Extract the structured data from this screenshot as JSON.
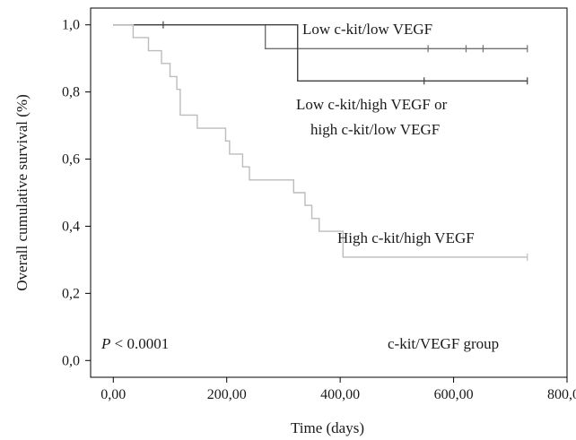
{
  "chart_data": {
    "type": "line",
    "subtype": "kaplan-meier-step",
    "xlabel": "Time (days)",
    "ylabel": "Overall cumulative survival (%)",
    "xlim": [
      -40,
      800
    ],
    "ylim": [
      -0.05,
      1.05
    ],
    "x_ticks": [
      0,
      200,
      400,
      600,
      800
    ],
    "x_tick_labels": [
      "0,00",
      "200,00",
      "400,00",
      "600,00",
      "800,00"
    ],
    "y_ticks": [
      0,
      0.2,
      0.4,
      0.6,
      0.8,
      1.0
    ],
    "y_tick_labels": [
      "0,0",
      "0,2",
      "0,4",
      "0,6",
      "0,8",
      "1,0"
    ],
    "grid": false,
    "series": [
      {
        "name": "Low c-kit/low VEGF",
        "color": "#707070",
        "steps": [
          [
            0,
            1.0
          ],
          [
            268,
            0.929
          ],
          [
            730,
            0.929
          ]
        ],
        "censored": [
          [
            555,
            0.929
          ],
          [
            622,
            0.929
          ],
          [
            652,
            0.929
          ],
          [
            730,
            0.929
          ]
        ]
      },
      {
        "name": "Low c-kit/high VEGF or high c-kit/low VEGF",
        "color": "#404040",
        "steps": [
          [
            0,
            1.0
          ],
          [
            325,
            0.833
          ],
          [
            730,
            0.833
          ]
        ],
        "censored": [
          [
            88,
            1.0
          ],
          [
            548,
            0.833
          ],
          [
            730,
            0.833
          ]
        ]
      },
      {
        "name": "High c-kit/high VEGF",
        "color": "#bcbcbc",
        "steps": [
          [
            0,
            1.0
          ],
          [
            35,
            0.962
          ],
          [
            62,
            0.923
          ],
          [
            85,
            0.885
          ],
          [
            100,
            0.846
          ],
          [
            112,
            0.808
          ],
          [
            118,
            0.731
          ],
          [
            148,
            0.692
          ],
          [
            198,
            0.654
          ],
          [
            205,
            0.615
          ],
          [
            228,
            0.577
          ],
          [
            240,
            0.538
          ],
          [
            318,
            0.5
          ],
          [
            338,
            0.462
          ],
          [
            350,
            0.423
          ],
          [
            363,
            0.385
          ],
          [
            405,
            0.308
          ],
          [
            730,
            0.308
          ]
        ],
        "censored": [
          [
            730,
            0.308
          ]
        ]
      }
    ],
    "annotations": {
      "group1_label": "Low c-kit/low VEGF",
      "group2_label_line1": "Low c-kit/high VEGF or",
      "group2_label_line2": "high c-kit/low VEGF",
      "group3_label": "High c-kit/high VEGF",
      "p_value_symbol": "P",
      "p_value_rest": " < 0.0001",
      "legend_title": "c-kit/VEGF group"
    }
  }
}
